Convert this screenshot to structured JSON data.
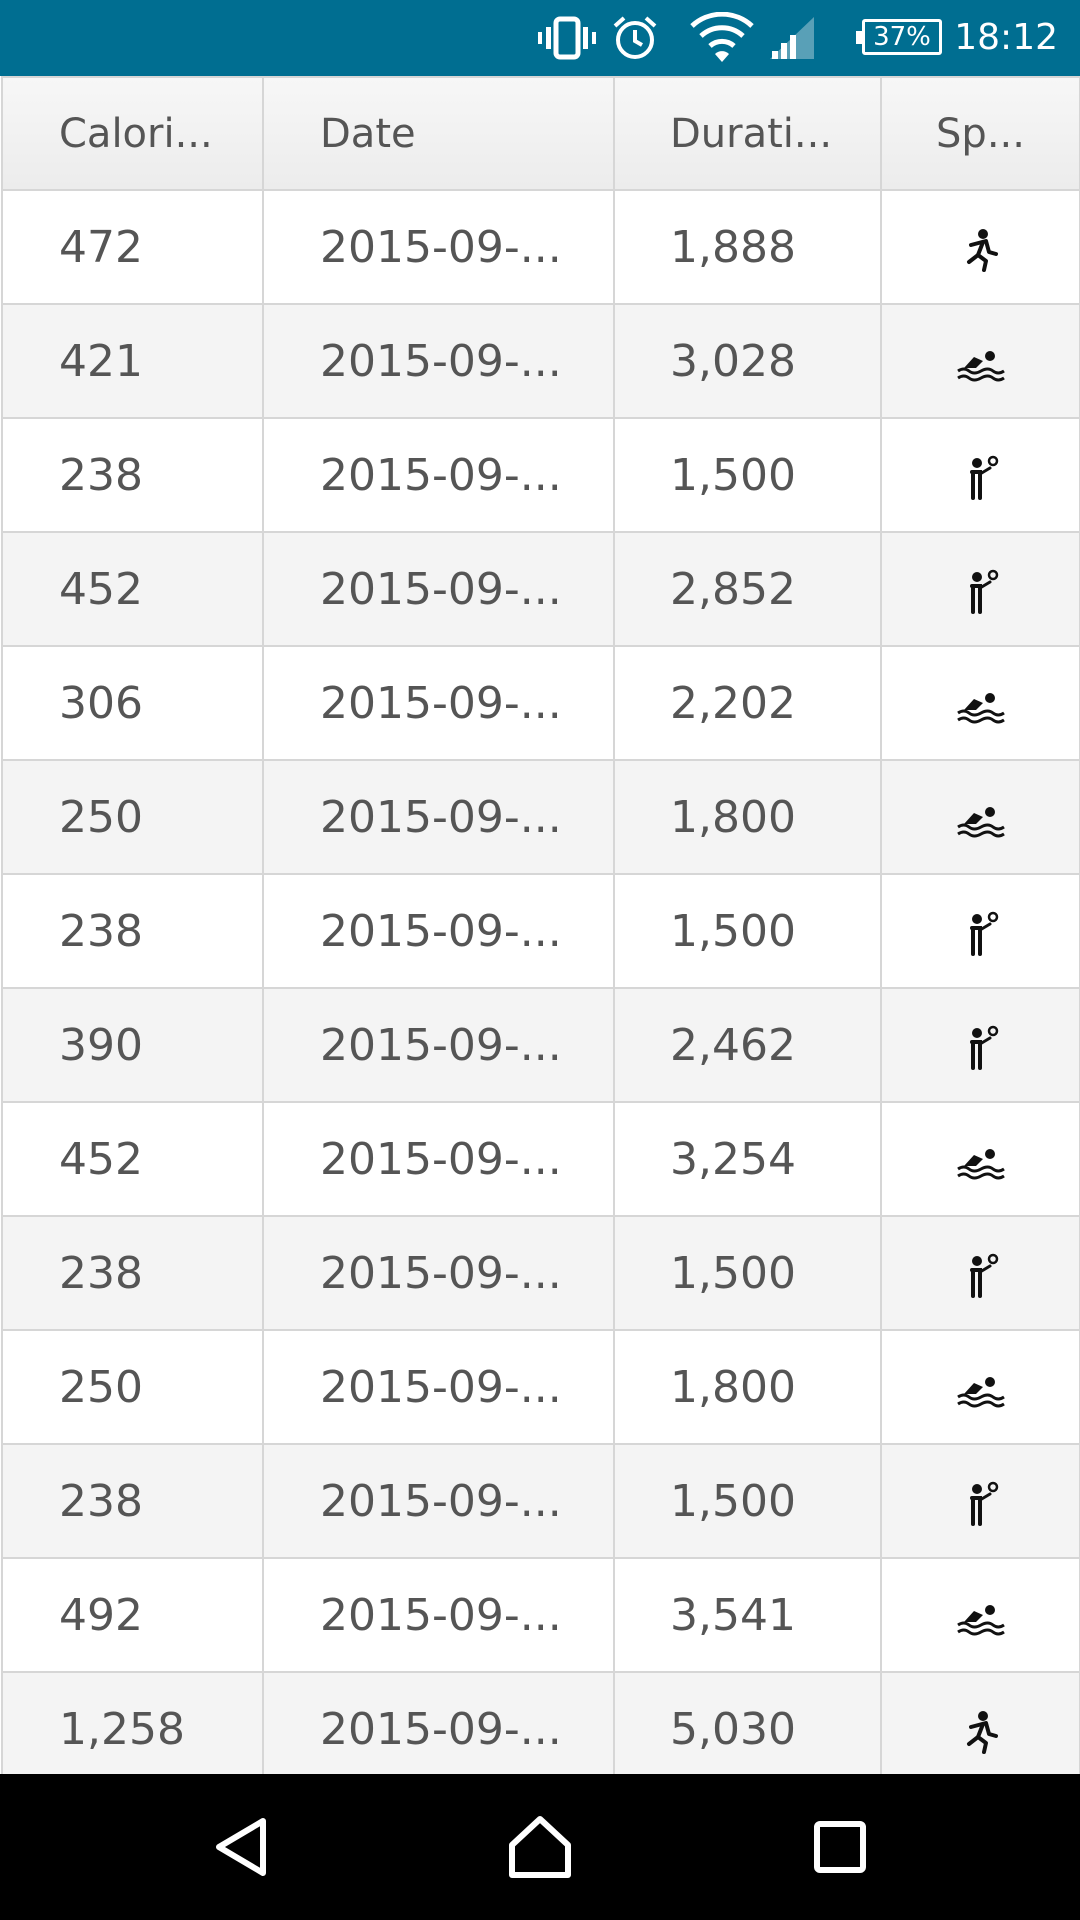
{
  "status_bar": {
    "time": "18:12",
    "battery_percent": "37%",
    "icons": [
      "vibrate-icon",
      "alarm-icon",
      "wifi-icon",
      "cell-signal-icon",
      "battery-icon"
    ]
  },
  "table": {
    "columns": [
      "Calori...",
      "Date",
      "Durati...",
      "Sp..."
    ],
    "rows": [
      {
        "calories": "472",
        "date": "2015-09-...",
        "duration": "1,888",
        "sport": "running-icon"
      },
      {
        "calories": "421",
        "date": "2015-09-...",
        "duration": "3,028",
        "sport": "swimming-icon"
      },
      {
        "calories": "238",
        "date": "2015-09-...",
        "duration": "1,500",
        "sport": "tennis-icon"
      },
      {
        "calories": "452",
        "date": "2015-09-...",
        "duration": "2,852",
        "sport": "tennis-icon"
      },
      {
        "calories": "306",
        "date": "2015-09-...",
        "duration": "2,202",
        "sport": "swimming-icon"
      },
      {
        "calories": "250",
        "date": "2015-09-...",
        "duration": "1,800",
        "sport": "swimming-icon"
      },
      {
        "calories": "238",
        "date": "2015-09-...",
        "duration": "1,500",
        "sport": "tennis-icon"
      },
      {
        "calories": "390",
        "date": "2015-09-...",
        "duration": "2,462",
        "sport": "tennis-icon"
      },
      {
        "calories": "452",
        "date": "2015-09-...",
        "duration": "3,254",
        "sport": "swimming-icon"
      },
      {
        "calories": "238",
        "date": "2015-09-...",
        "duration": "1,500",
        "sport": "tennis-icon"
      },
      {
        "calories": "250",
        "date": "2015-09-...",
        "duration": "1,800",
        "sport": "swimming-icon"
      },
      {
        "calories": "238",
        "date": "2015-09-...",
        "duration": "1,500",
        "sport": "tennis-icon"
      },
      {
        "calories": "492",
        "date": "2015-09-...",
        "duration": "3,541",
        "sport": "swimming-icon"
      },
      {
        "calories": "1,258",
        "date": "2015-09-...",
        "duration": "5,030",
        "sport": "running-icon"
      }
    ]
  },
  "nav_bar": {
    "buttons": [
      "back-icon",
      "home-icon",
      "recents-icon"
    ]
  },
  "colors": {
    "status_bar": "#006e91",
    "nav_bar": "#000000",
    "grid_line": "#d6d6d6",
    "text": "#555555"
  }
}
